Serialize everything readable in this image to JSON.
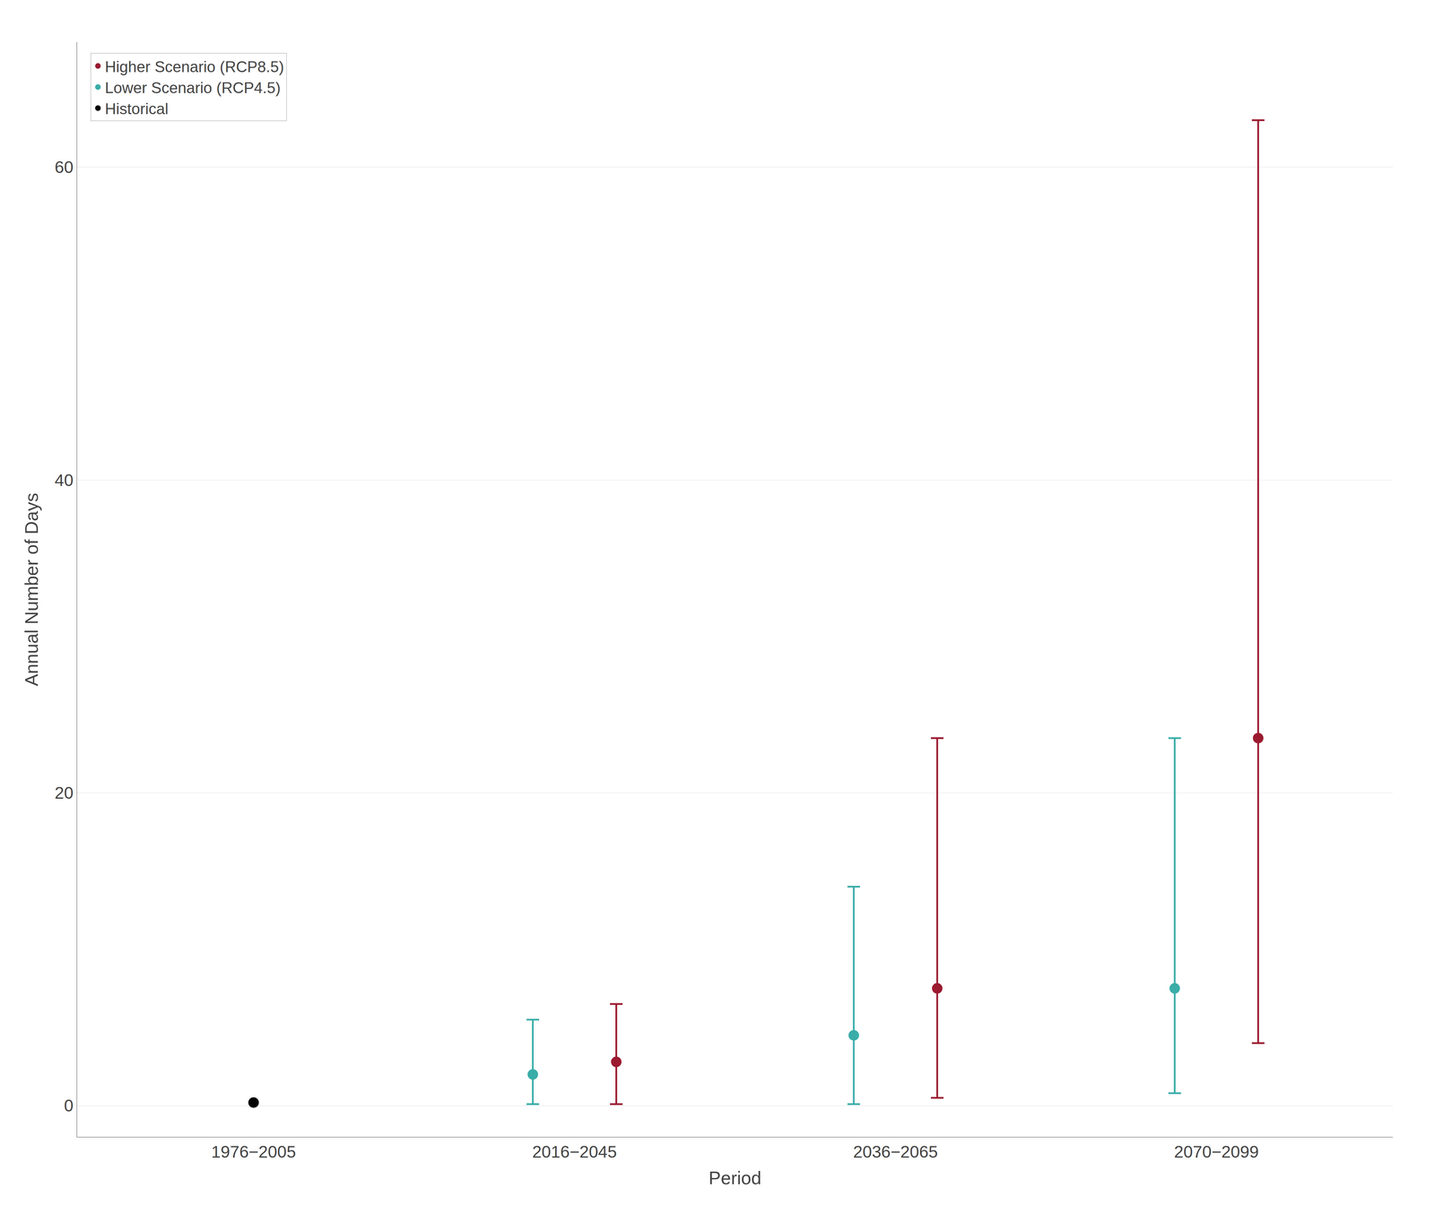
{
  "chart_data": {
    "type": "scatter",
    "xlabel": "Period",
    "ylabel": "Annual Number of Days",
    "categories": [
      "1976−2005",
      "2016−2045",
      "2036−2065",
      "2070−2099"
    ],
    "series": [
      {
        "name": "Historical",
        "color": "#000000",
        "marker": "circle",
        "values": [
          0.2,
          null,
          null,
          null
        ]
      },
      {
        "name": "Lower Scenario (RCP4.5)",
        "color": "#3aada8",
        "marker": "circle",
        "values": [
          null,
          2.0,
          4.5,
          7.5
        ],
        "y_lower": [
          null,
          0.1,
          0.1,
          0.8
        ],
        "y_upper": [
          null,
          5.5,
          14.0,
          23.5
        ]
      },
      {
        "name": "Higher Scenario (RCP8.5)",
        "color": "#9b1a2f",
        "marker": "circle",
        "values": [
          null,
          2.8,
          7.5,
          23.5
        ],
        "y_lower": [
          null,
          0.1,
          0.5,
          4.0
        ],
        "y_upper": [
          null,
          6.5,
          23.5,
          63.0
        ]
      }
    ],
    "ylim": [
      -2,
      68
    ],
    "yticks": [
      0,
      20,
      40,
      60
    ],
    "grid": "y",
    "legend": "upper left"
  }
}
